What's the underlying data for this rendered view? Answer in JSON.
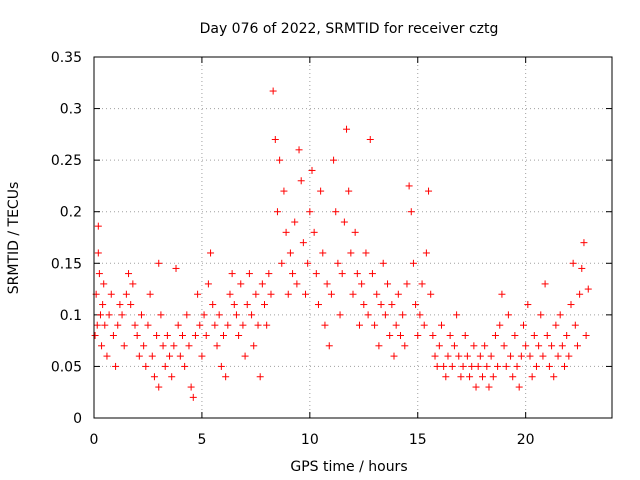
{
  "colors": {
    "points": "#ff0000",
    "grid": "#a0a0a0",
    "axis": "#000000",
    "background": "#ffffff"
  },
  "chart_data": {
    "type": "scatter",
    "title": "Day 076 of 2022, SRMTID for receiver cztg",
    "xlabel": "GPS time / hours",
    "ylabel": "SRMTID / TECUs",
    "xlim": [
      0,
      24
    ],
    "ylim": [
      0,
      0.35
    ],
    "x_ticks": [
      0,
      5,
      10,
      15,
      20
    ],
    "x_tick_labels": [
      "0",
      "5",
      "10",
      "15",
      "20"
    ],
    "y_ticks": [
      0,
      0.05,
      0.1,
      0.15,
      0.2,
      0.25,
      0.3,
      0.35
    ],
    "y_tick_labels": [
      "0",
      "0.05",
      "0.1",
      "0.15",
      "0.2",
      "0.25",
      "0.3",
      "0.35"
    ],
    "grid": true,
    "marker": "plus",
    "series": [
      {
        "name": "SRMTID",
        "points": [
          [
            0.05,
            0.08
          ],
          [
            0.1,
            0.12
          ],
          [
            0.15,
            0.09
          ],
          [
            0.2,
            0.186
          ],
          [
            0.2,
            0.16
          ],
          [
            0.25,
            0.14
          ],
          [
            0.3,
            0.1
          ],
          [
            0.35,
            0.07
          ],
          [
            0.4,
            0.11
          ],
          [
            0.45,
            0.13
          ],
          [
            0.5,
            0.09
          ],
          [
            0.6,
            0.06
          ],
          [
            0.7,
            0.1
          ],
          [
            0.8,
            0.12
          ],
          [
            0.9,
            0.08
          ],
          [
            1.0,
            0.05
          ],
          [
            1.1,
            0.09
          ],
          [
            1.2,
            0.11
          ],
          [
            1.3,
            0.1
          ],
          [
            1.4,
            0.07
          ],
          [
            1.5,
            0.12
          ],
          [
            1.6,
            0.14
          ],
          [
            1.7,
            0.11
          ],
          [
            1.8,
            0.13
          ],
          [
            1.9,
            0.09
          ],
          [
            2.0,
            0.08
          ],
          [
            2.1,
            0.06
          ],
          [
            2.2,
            0.1
          ],
          [
            2.3,
            0.07
          ],
          [
            2.4,
            0.05
          ],
          [
            2.5,
            0.09
          ],
          [
            2.6,
            0.12
          ],
          [
            2.7,
            0.06
          ],
          [
            2.8,
            0.04
          ],
          [
            2.9,
            0.08
          ],
          [
            3.0,
            0.03
          ],
          [
            3.0,
            0.15
          ],
          [
            3.1,
            0.1
          ],
          [
            3.2,
            0.07
          ],
          [
            3.3,
            0.05
          ],
          [
            3.4,
            0.08
          ],
          [
            3.5,
            0.06
          ],
          [
            3.6,
            0.04
          ],
          [
            3.7,
            0.07
          ],
          [
            3.8,
            0.145
          ],
          [
            3.9,
            0.09
          ],
          [
            4.0,
            0.06
          ],
          [
            4.1,
            0.08
          ],
          [
            4.2,
            0.05
          ],
          [
            4.3,
            0.1
          ],
          [
            4.4,
            0.07
          ],
          [
            4.5,
            0.03
          ],
          [
            4.6,
            0.02
          ],
          [
            4.7,
            0.08
          ],
          [
            4.8,
            0.12
          ],
          [
            4.9,
            0.09
          ],
          [
            5.0,
            0.06
          ],
          [
            5.1,
            0.1
          ],
          [
            5.2,
            0.08
          ],
          [
            5.3,
            0.13
          ],
          [
            5.4,
            0.16
          ],
          [
            5.5,
            0.11
          ],
          [
            5.6,
            0.09
          ],
          [
            5.7,
            0.07
          ],
          [
            5.8,
            0.1
          ],
          [
            5.9,
            0.05
          ],
          [
            6.0,
            0.08
          ],
          [
            6.1,
            0.04
          ],
          [
            6.2,
            0.09
          ],
          [
            6.3,
            0.12
          ],
          [
            6.4,
            0.14
          ],
          [
            6.5,
            0.11
          ],
          [
            6.6,
            0.1
          ],
          [
            6.7,
            0.08
          ],
          [
            6.8,
            0.13
          ],
          [
            6.9,
            0.09
          ],
          [
            7.0,
            0.06
          ],
          [
            7.1,
            0.11
          ],
          [
            7.2,
            0.14
          ],
          [
            7.3,
            0.1
          ],
          [
            7.4,
            0.07
          ],
          [
            7.5,
            0.12
          ],
          [
            7.6,
            0.09
          ],
          [
            7.7,
            0.04
          ],
          [
            7.8,
            0.13
          ],
          [
            7.9,
            0.11
          ],
          [
            8.0,
            0.09
          ],
          [
            8.1,
            0.14
          ],
          [
            8.2,
            0.12
          ],
          [
            8.3,
            0.317
          ],
          [
            8.4,
            0.27
          ],
          [
            8.5,
            0.2
          ],
          [
            8.6,
            0.25
          ],
          [
            8.7,
            0.15
          ],
          [
            8.8,
            0.22
          ],
          [
            8.9,
            0.18
          ],
          [
            9.0,
            0.12
          ],
          [
            9.1,
            0.16
          ],
          [
            9.2,
            0.14
          ],
          [
            9.3,
            0.19
          ],
          [
            9.4,
            0.13
          ],
          [
            9.5,
            0.26
          ],
          [
            9.6,
            0.23
          ],
          [
            9.7,
            0.17
          ],
          [
            9.8,
            0.12
          ],
          [
            9.9,
            0.15
          ],
          [
            10.0,
            0.2
          ],
          [
            10.1,
            0.24
          ],
          [
            10.2,
            0.18
          ],
          [
            10.3,
            0.14
          ],
          [
            10.4,
            0.11
          ],
          [
            10.5,
            0.22
          ],
          [
            10.6,
            0.16
          ],
          [
            10.7,
            0.09
          ],
          [
            10.8,
            0.13
          ],
          [
            10.9,
            0.07
          ],
          [
            11.0,
            0.12
          ],
          [
            11.1,
            0.25
          ],
          [
            11.2,
            0.2
          ],
          [
            11.3,
            0.15
          ],
          [
            11.4,
            0.1
          ],
          [
            11.5,
            0.14
          ],
          [
            11.6,
            0.19
          ],
          [
            11.7,
            0.28
          ],
          [
            11.8,
            0.22
          ],
          [
            11.9,
            0.16
          ],
          [
            12.0,
            0.12
          ],
          [
            12.1,
            0.18
          ],
          [
            12.2,
            0.14
          ],
          [
            12.3,
            0.09
          ],
          [
            12.4,
            0.13
          ],
          [
            12.5,
            0.11
          ],
          [
            12.6,
            0.16
          ],
          [
            12.7,
            0.1
          ],
          [
            12.8,
            0.27
          ],
          [
            12.9,
            0.14
          ],
          [
            13.0,
            0.09
          ],
          [
            13.1,
            0.12
          ],
          [
            13.2,
            0.07
          ],
          [
            13.3,
            0.11
          ],
          [
            13.4,
            0.15
          ],
          [
            13.5,
            0.1
          ],
          [
            13.6,
            0.13
          ],
          [
            13.7,
            0.08
          ],
          [
            13.8,
            0.11
          ],
          [
            13.9,
            0.06
          ],
          [
            14.0,
            0.09
          ],
          [
            14.1,
            0.12
          ],
          [
            14.2,
            0.08
          ],
          [
            14.3,
            0.1
          ],
          [
            14.4,
            0.07
          ],
          [
            14.5,
            0.13
          ],
          [
            14.6,
            0.225
          ],
          [
            14.7,
            0.2
          ],
          [
            14.8,
            0.15
          ],
          [
            14.9,
            0.11
          ],
          [
            15.0,
            0.08
          ],
          [
            15.1,
            0.1
          ],
          [
            15.2,
            0.13
          ],
          [
            15.3,
            0.09
          ],
          [
            15.4,
            0.16
          ],
          [
            15.5,
            0.22
          ],
          [
            15.6,
            0.12
          ],
          [
            15.7,
            0.08
          ],
          [
            15.8,
            0.06
          ],
          [
            15.9,
            0.05
          ],
          [
            16.0,
            0.07
          ],
          [
            16.1,
            0.09
          ],
          [
            16.2,
            0.05
          ],
          [
            16.3,
            0.04
          ],
          [
            16.4,
            0.06
          ],
          [
            16.5,
            0.08
          ],
          [
            16.6,
            0.05
          ],
          [
            16.7,
            0.07
          ],
          [
            16.8,
            0.1
          ],
          [
            16.9,
            0.06
          ],
          [
            17.0,
            0.04
          ],
          [
            17.1,
            0.05
          ],
          [
            17.2,
            0.08
          ],
          [
            17.3,
            0.06
          ],
          [
            17.4,
            0.04
          ],
          [
            17.5,
            0.05
          ],
          [
            17.6,
            0.07
          ],
          [
            17.7,
            0.03
          ],
          [
            17.8,
            0.05
          ],
          [
            17.9,
            0.06
          ],
          [
            18.0,
            0.04
          ],
          [
            18.1,
            0.07
          ],
          [
            18.2,
            0.05
          ],
          [
            18.3,
            0.03
          ],
          [
            18.4,
            0.06
          ],
          [
            18.5,
            0.04
          ],
          [
            18.6,
            0.08
          ],
          [
            18.7,
            0.05
          ],
          [
            18.8,
            0.09
          ],
          [
            18.9,
            0.12
          ],
          [
            19.0,
            0.07
          ],
          [
            19.1,
            0.05
          ],
          [
            19.2,
            0.1
          ],
          [
            19.3,
            0.06
          ],
          [
            19.4,
            0.04
          ],
          [
            19.5,
            0.08
          ],
          [
            19.6,
            0.05
          ],
          [
            19.7,
            0.03
          ],
          [
            19.8,
            0.06
          ],
          [
            19.9,
            0.09
          ],
          [
            20.0,
            0.07
          ],
          [
            20.1,
            0.11
          ],
          [
            20.2,
            0.06
          ],
          [
            20.3,
            0.04
          ],
          [
            20.4,
            0.08
          ],
          [
            20.5,
            0.05
          ],
          [
            20.6,
            0.07
          ],
          [
            20.7,
            0.1
          ],
          [
            20.8,
            0.06
          ],
          [
            20.9,
            0.13
          ],
          [
            21.0,
            0.08
          ],
          [
            21.1,
            0.05
          ],
          [
            21.2,
            0.07
          ],
          [
            21.3,
            0.04
          ],
          [
            21.4,
            0.09
          ],
          [
            21.5,
            0.06
          ],
          [
            21.6,
            0.1
          ],
          [
            21.7,
            0.07
          ],
          [
            21.8,
            0.05
          ],
          [
            21.9,
            0.08
          ],
          [
            22.0,
            0.06
          ],
          [
            22.1,
            0.11
          ],
          [
            22.2,
            0.15
          ],
          [
            22.3,
            0.09
          ],
          [
            22.4,
            0.07
          ],
          [
            22.5,
            0.12
          ],
          [
            22.6,
            0.145
          ],
          [
            22.7,
            0.17
          ],
          [
            22.8,
            0.08
          ],
          [
            22.9,
            0.125
          ]
        ]
      }
    ]
  }
}
